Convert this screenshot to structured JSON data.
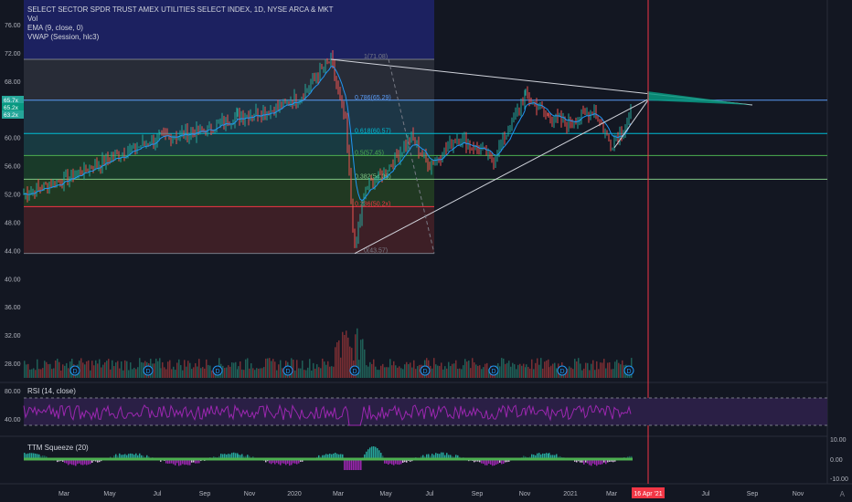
{
  "legend": {
    "title": "SELECT SECTOR SPDR TRUST AMEX UTILITIES SELECT INDEX, 1D, NYSE ARCA & MKT",
    "vol": "Vol",
    "ema": "EMA (9, close, 0)",
    "vwap": "VWAP (Session, hlc3)"
  },
  "price_axis": [
    "76.00",
    "72.00",
    "68.00",
    "64.00",
    "60.00",
    "56.00",
    "52.00",
    "48.00",
    "44.00",
    "40.00",
    "36.00",
    "32.00",
    "28.00"
  ],
  "price_tags": [
    {
      "text": "65.7x",
      "color": "#26a69a"
    },
    {
      "text": "65.2x",
      "color": "#089981"
    },
    {
      "text": "63.2x",
      "color": "#26a69a"
    }
  ],
  "fib_levels": [
    {
      "label": "1(71.08)",
      "price": 71.08,
      "color": "#787b86"
    },
    {
      "label": "0.786(65.29)",
      "price": 65.29,
      "color": "#5b9cf6"
    },
    {
      "label": "0.618(60.57)",
      "price": 60.57,
      "color": "#00bcd4"
    },
    {
      "label": "0.5(57.45)",
      "price": 57.45,
      "color": "#4caf50"
    },
    {
      "label": "0.382(54.08)",
      "price": 54.08,
      "color": "#81c784"
    },
    {
      "label": "0.236(50.2x)",
      "price": 50.2,
      "color": "#f23645"
    },
    {
      "label": "0(43.57)",
      "price": 43.57,
      "color": "#787b86"
    }
  ],
  "rsi": {
    "label": "RSI (14, close)",
    "axis": [
      "80.00",
      "40.00"
    ]
  },
  "squeeze": {
    "label": "TTM Squeeze (20)",
    "axis": [
      "10.00",
      "0.00",
      "-10.00"
    ]
  },
  "time_axis": [
    "Mar",
    "May",
    "Jul",
    "Sep",
    "Nov",
    "2020",
    "Mar",
    "May",
    "Jul",
    "Sep",
    "Nov",
    "2021",
    "Mar",
    "Jul",
    "Sep",
    "Nov"
  ],
  "cursor_date": "16 Apr '21",
  "dividend_marker": "D",
  "corner_label": "A",
  "colors": {
    "background": "#131722",
    "up": "#26a69a",
    "down": "#ef5350",
    "rsi_line": "#9c27b0",
    "cursor": "#f23645"
  },
  "chart_data": {
    "type": "line",
    "title": "SELECT SECTOR SPDR TRUST AMEX UTILITIES SELECT INDEX, 1D, NYSE ARCA & MKT",
    "x": [
      "2019-02",
      "2019-03",
      "2019-05",
      "2019-07",
      "2019-09",
      "2019-11",
      "2020-01",
      "2020-02",
      "2020-03",
      "2020-05",
      "2020-07",
      "2020-09",
      "2020-11",
      "2021-01",
      "2021-03",
      "2021-04"
    ],
    "series": [
      {
        "name": "",
        "values": [
          52,
          54,
          57,
          60,
          61,
          63,
          66,
          71,
          44,
          54,
          57,
          61,
          67,
          63,
          59,
          63
        ]
      }
    ],
    "ylim": [
      26,
      78
    ]
  }
}
